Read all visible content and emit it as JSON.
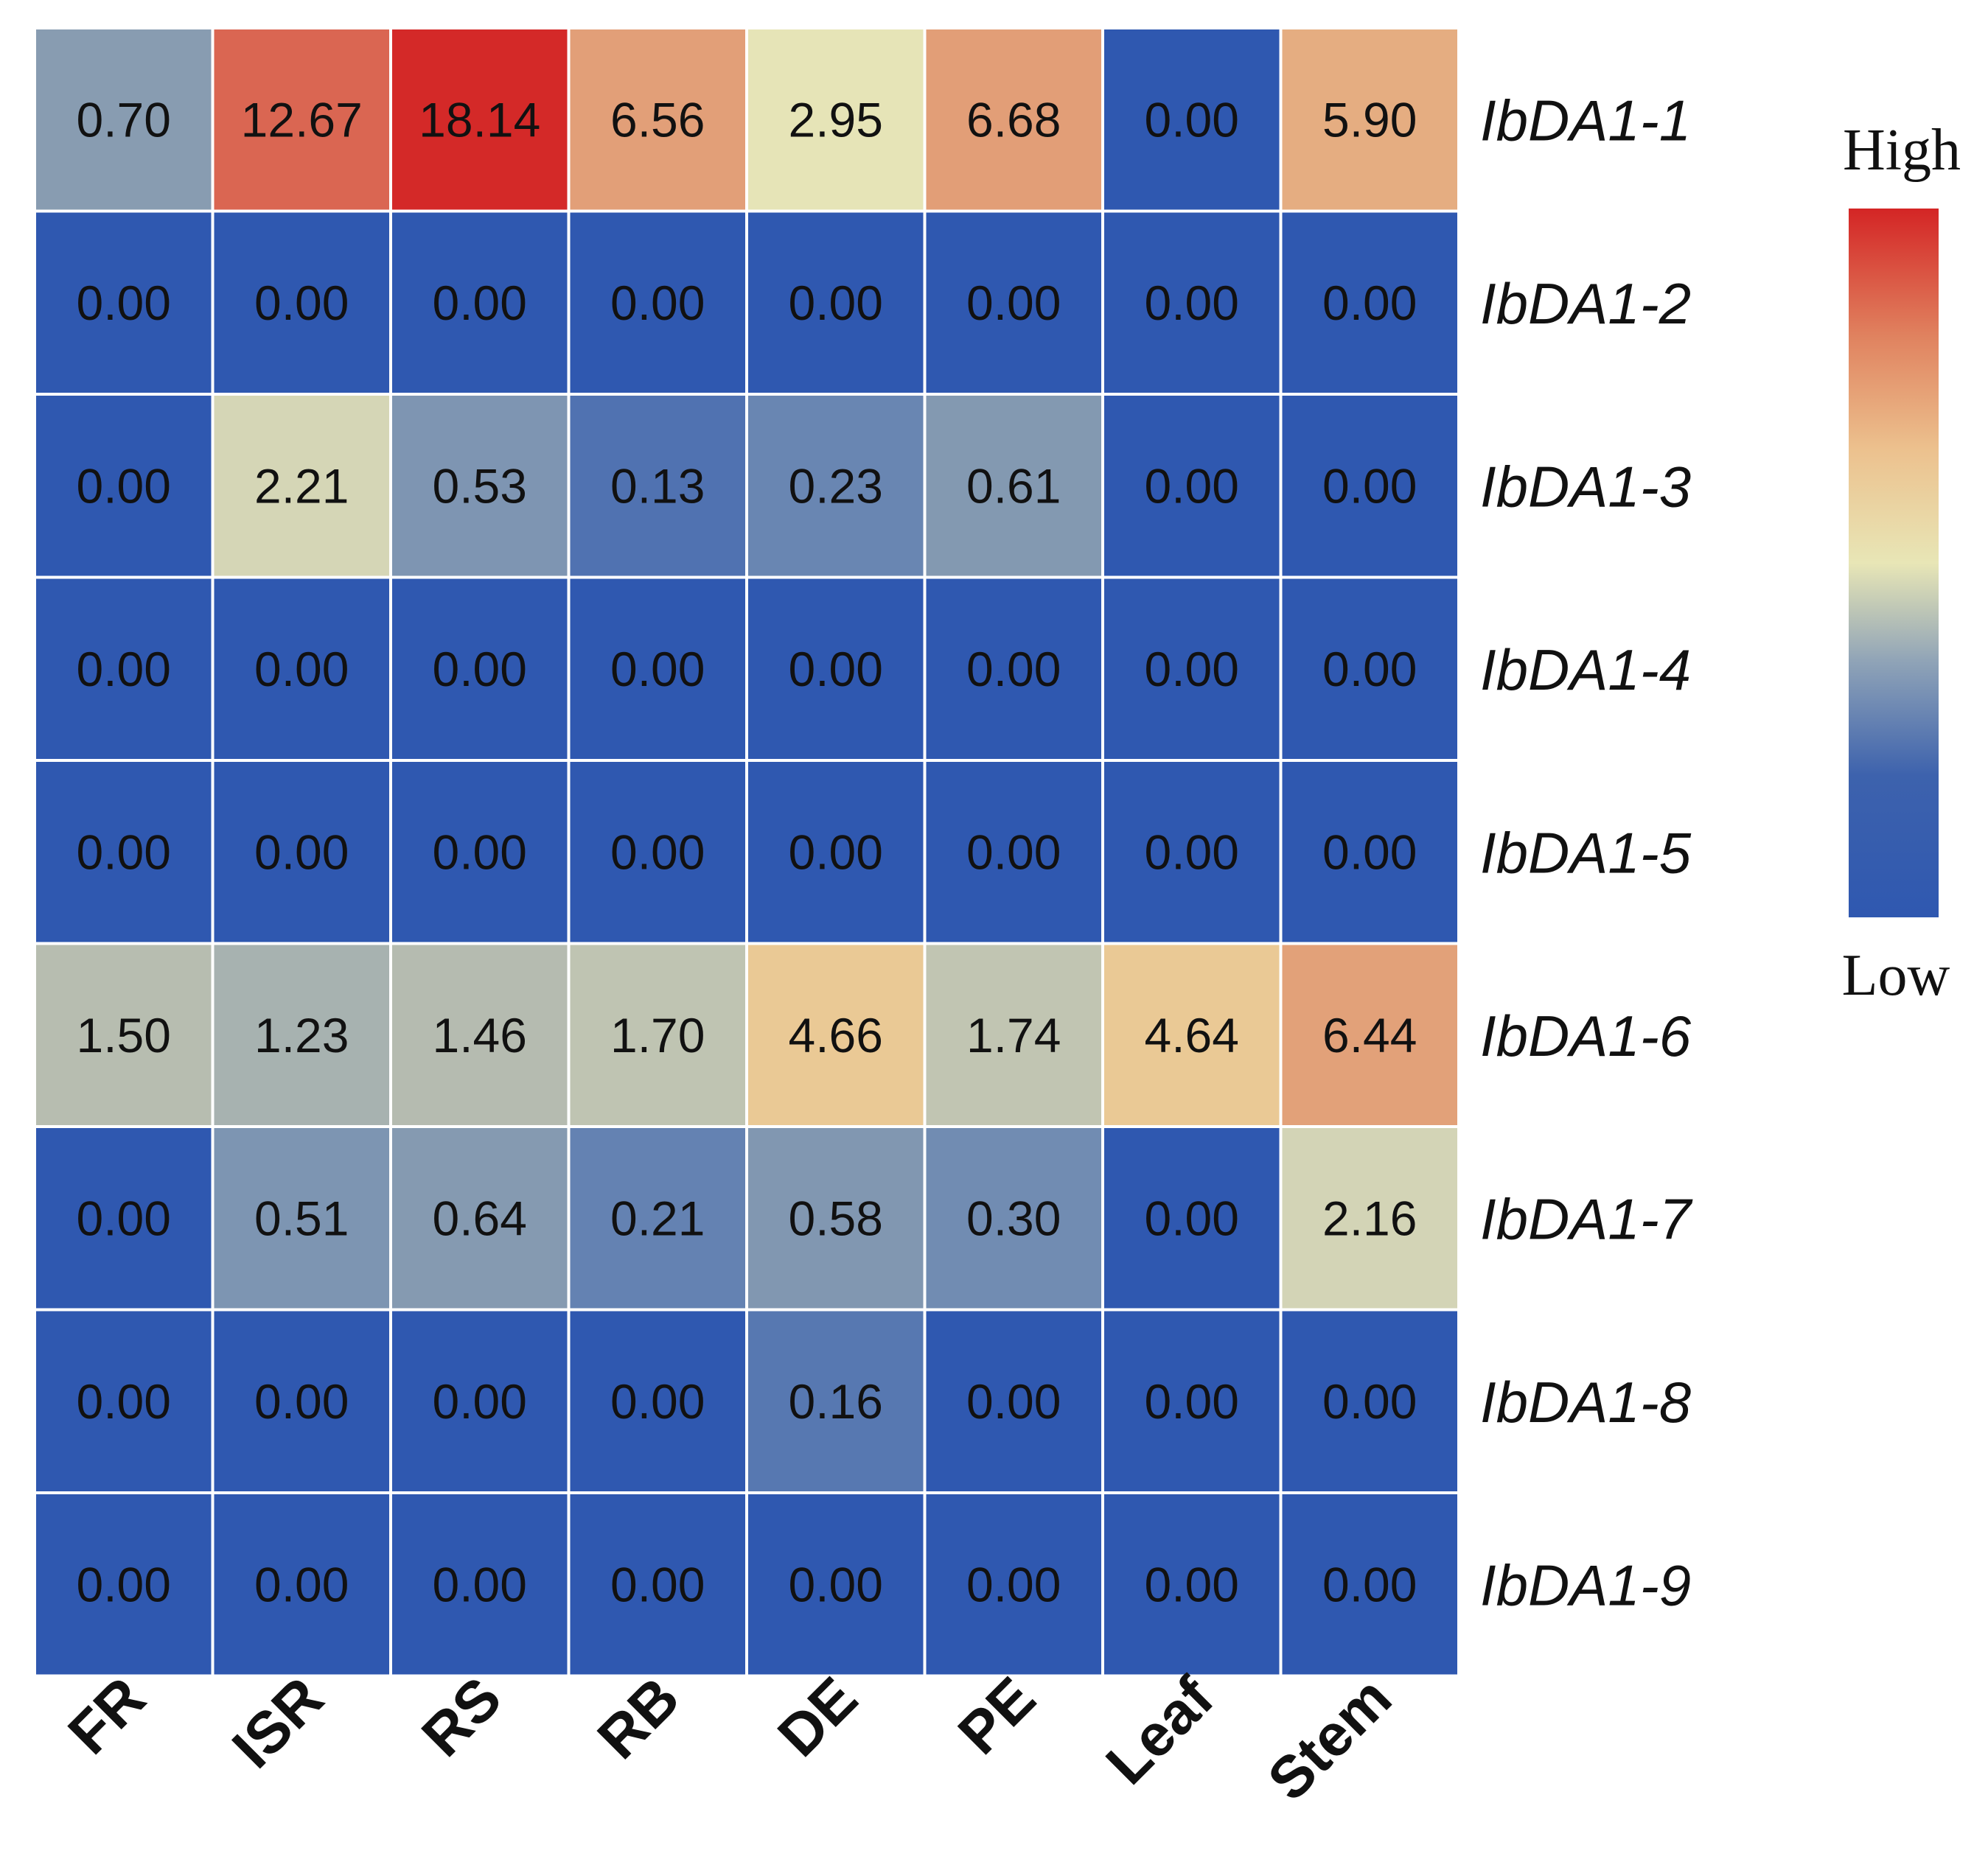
{
  "chart_data": {
    "type": "heatmap",
    "title": "",
    "xlabel": "",
    "ylabel": "",
    "columns": [
      "FR",
      "ISR",
      "RS",
      "RB",
      "DE",
      "PE",
      "Leaf",
      "Stem"
    ],
    "rows": [
      "IbDA1-1",
      "IbDA1-2",
      "IbDA1-3",
      "IbDA1-4",
      "IbDA1-5",
      "IbDA1-6",
      "IbDA1-7",
      "IbDA1-8",
      "IbDA1-9"
    ],
    "values": [
      [
        "0.70",
        "12.67",
        "18.14",
        "6.56",
        "2.95",
        "6.68",
        "0.00",
        "5.90"
      ],
      [
        "0.00",
        "0.00",
        "0.00",
        "0.00",
        "0.00",
        "0.00",
        "0.00",
        "0.00"
      ],
      [
        "0.00",
        "2.21",
        "0.53",
        "0.13",
        "0.23",
        "0.61",
        "0.00",
        "0.00"
      ],
      [
        "0.00",
        "0.00",
        "0.00",
        "0.00",
        "0.00",
        "0.00",
        "0.00",
        "0.00"
      ],
      [
        "0.00",
        "0.00",
        "0.00",
        "0.00",
        "0.00",
        "0.00",
        "0.00",
        "0.00"
      ],
      [
        "1.50",
        "1.23",
        "1.46",
        "1.70",
        "4.66",
        "1.74",
        "4.64",
        "6.44"
      ],
      [
        "0.00",
        "0.51",
        "0.64",
        "0.21",
        "0.58",
        "0.30",
        "0.00",
        "2.16"
      ],
      [
        "0.00",
        "0.00",
        "0.00",
        "0.00",
        "0.16",
        "0.00",
        "0.00",
        "0.00"
      ],
      [
        "0.00",
        "0.00",
        "0.00",
        "0.00",
        "0.00",
        "0.00",
        "0.00",
        "0.00"
      ]
    ],
    "color_scale": {
      "low_color": "#2f58b0",
      "mid_color": "#e8e6b6",
      "high_color": "#d42525",
      "legend_high": "High",
      "legend_low": "Low"
    },
    "legend_position": "right"
  }
}
